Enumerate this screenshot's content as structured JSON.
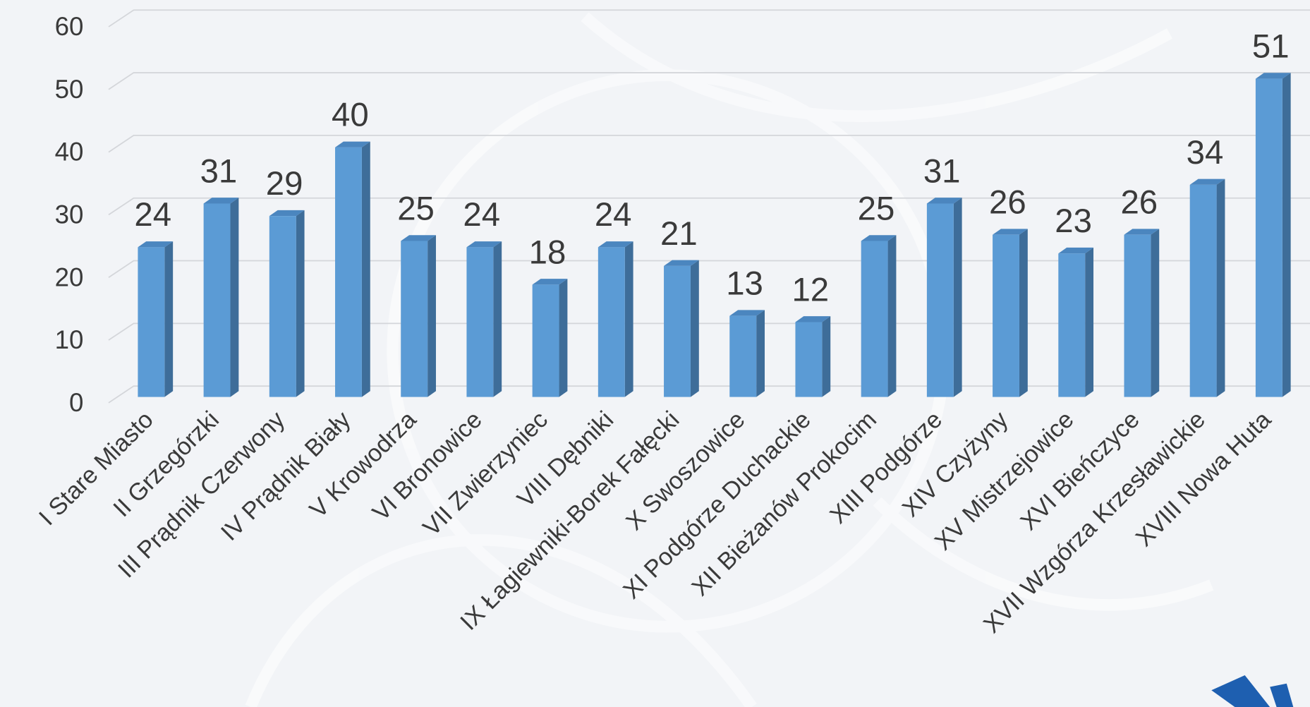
{
  "chart_data": {
    "type": "bar",
    "categories": [
      "I Stare Miasto",
      "II Grzegórzki",
      "III Prądnik Czerwony",
      "IV Prądnik Biały",
      "V Krowodrza",
      "VI Bronowice",
      "VII Zwierzyniec",
      "VIII Dębniki",
      "IX Łagiewniki-Borek Fałęcki",
      "X Swoszowice",
      "XI Podgórze Duchackie",
      "XII Bieżanów Prokocim",
      "XIII Podgórze",
      "XIV Czyżyny",
      "XV Mistrzejowice",
      "XVI Bieńczyce",
      "XVII Wzgórza Krzesławickie",
      "XVIII Nowa Huta"
    ],
    "values": [
      24,
      31,
      29,
      40,
      25,
      24,
      18,
      24,
      21,
      13,
      12,
      25,
      31,
      26,
      23,
      26,
      34,
      51
    ],
    "color": "#5b9bd5",
    "ylim": [
      0,
      60
    ],
    "yticks": [
      0,
      10,
      20,
      30,
      40,
      50,
      60
    ],
    "grid": true
  }
}
